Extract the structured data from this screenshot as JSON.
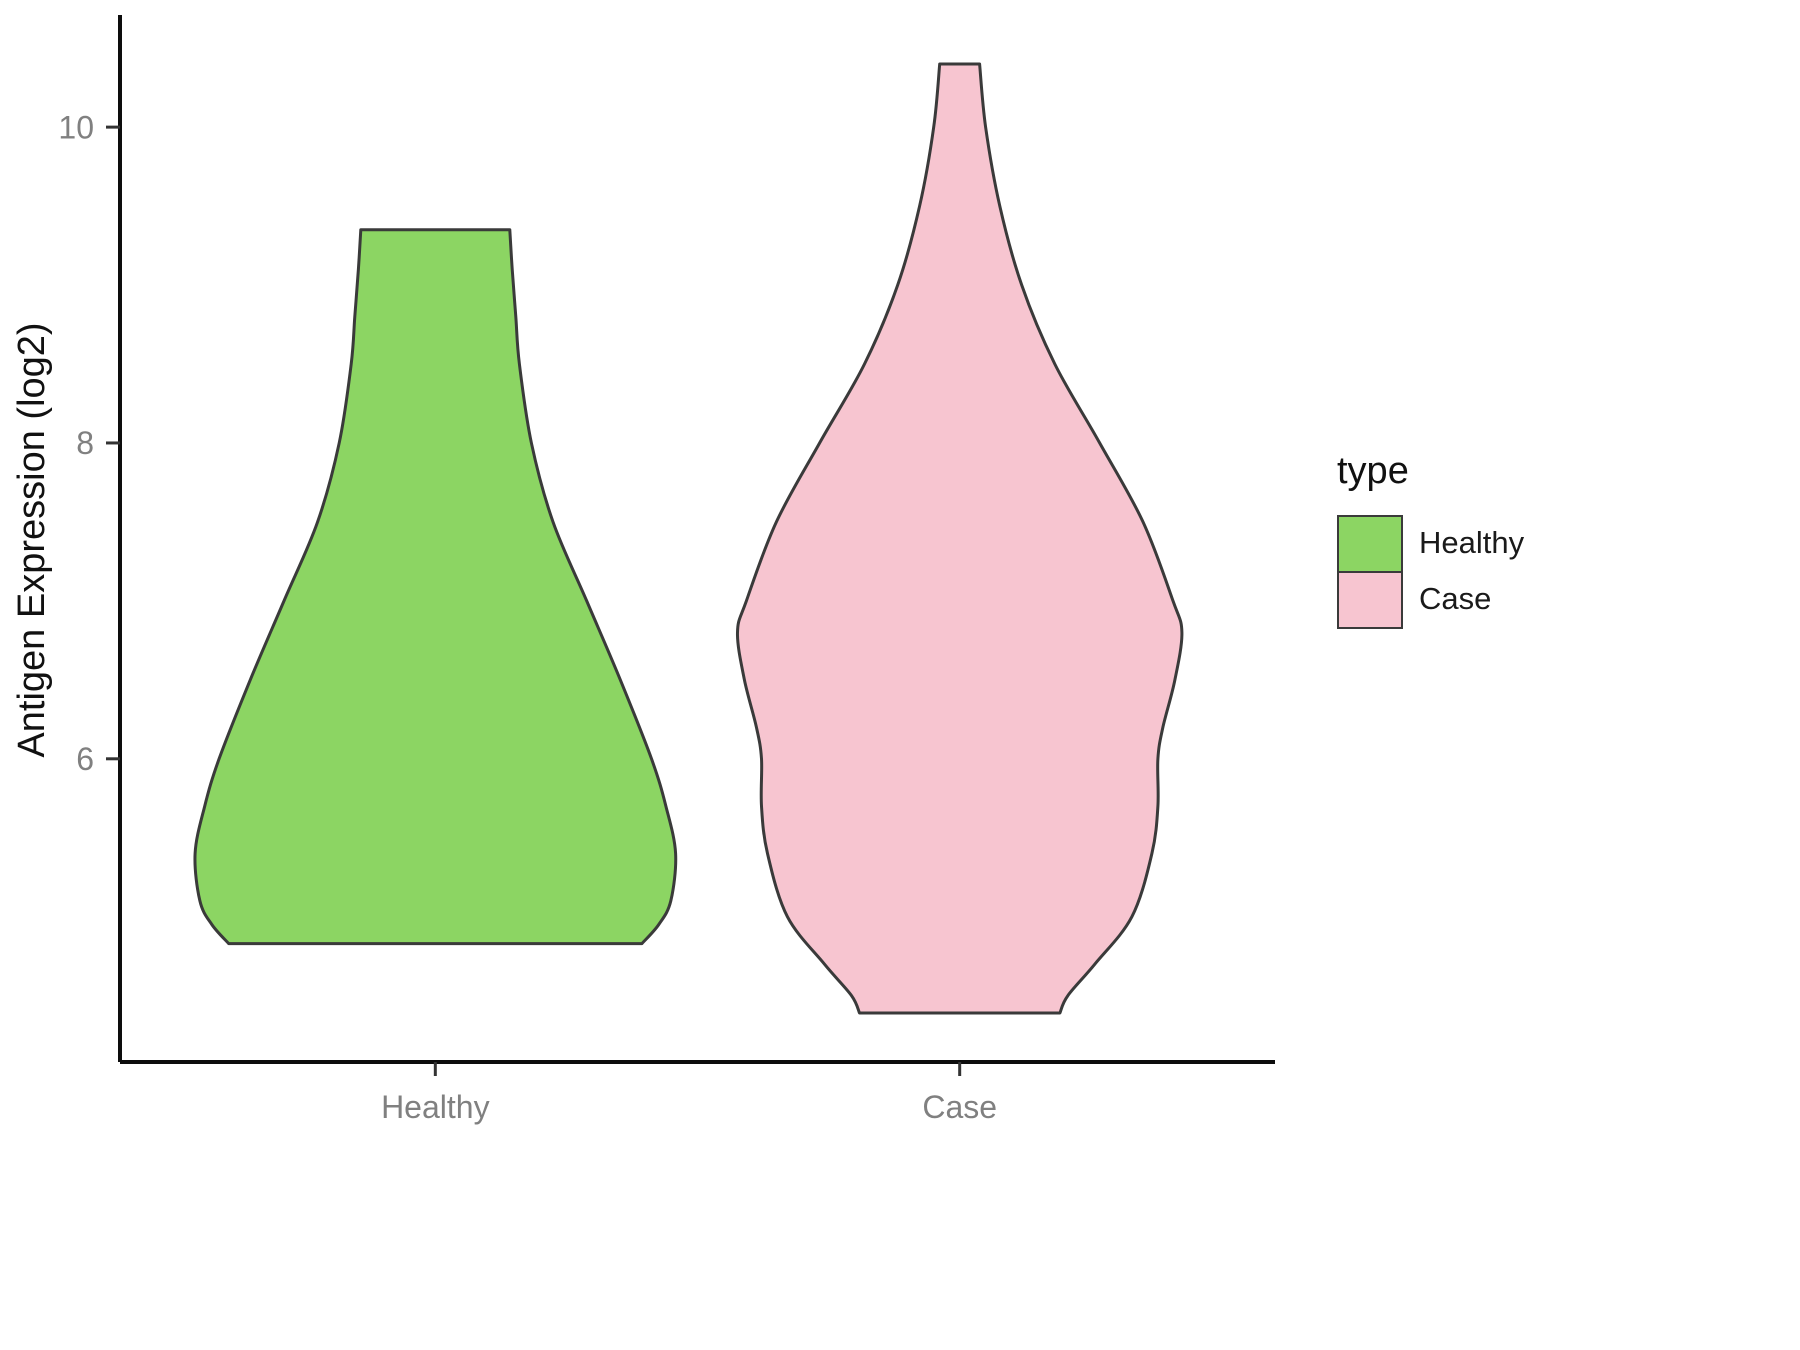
{
  "chart_data": {
    "type": "violin",
    "title": "",
    "xlabel": "",
    "ylabel": "Antigen Expression (log2)",
    "categories": [
      "Healthy",
      "Case"
    ],
    "yticks": [
      6,
      8,
      10
    ],
    "ylim": [
      4.08,
      10.71
    ],
    "grid": false,
    "legend_position": "right",
    "outline_color": "#3A3A3A",
    "axis_color": "#0d0d0d",
    "legend": {
      "title": "type",
      "entries": [
        {
          "label": "Healthy",
          "color": "#8CD563"
        },
        {
          "label": "Case",
          "color": "#F7C5D0"
        }
      ]
    },
    "violins": [
      {
        "category": "Healthy",
        "color": "#8CD563",
        "profile": [
          {
            "v": 9.35,
            "w": 0.31
          },
          {
            "v": 9.1,
            "w": 0.32
          },
          {
            "v": 8.8,
            "w": 0.335
          },
          {
            "v": 8.5,
            "w": 0.35
          },
          {
            "v": 8.0,
            "w": 0.4
          },
          {
            "v": 7.5,
            "w": 0.49
          },
          {
            "v": 7.0,
            "w": 0.63
          },
          {
            "v": 6.5,
            "w": 0.77
          },
          {
            "v": 6.0,
            "w": 0.9
          },
          {
            "v": 5.7,
            "w": 0.96
          },
          {
            "v": 5.4,
            "w": 1.0
          },
          {
            "v": 5.1,
            "w": 0.98
          },
          {
            "v": 4.95,
            "w": 0.93
          },
          {
            "v": 4.83,
            "w": 0.86
          }
        ]
      },
      {
        "category": "Case",
        "color": "#F7C5D0",
        "profile": [
          {
            "v": 10.4,
            "w": 0.083
          },
          {
            "v": 10.0,
            "w": 0.108
          },
          {
            "v": 9.5,
            "w": 0.167
          },
          {
            "v": 9.0,
            "w": 0.258
          },
          {
            "v": 8.5,
            "w": 0.396
          },
          {
            "v": 8.0,
            "w": 0.583
          },
          {
            "v": 7.5,
            "w": 0.763
          },
          {
            "v": 7.0,
            "w": 0.888
          },
          {
            "v": 6.8,
            "w": 0.925
          },
          {
            "v": 6.5,
            "w": 0.896
          },
          {
            "v": 6.2,
            "w": 0.846
          },
          {
            "v": 6.0,
            "w": 0.825
          },
          {
            "v": 5.7,
            "w": 0.825
          },
          {
            "v": 5.4,
            "w": 0.8
          },
          {
            "v": 5.0,
            "w": 0.717
          },
          {
            "v": 4.7,
            "w": 0.563
          },
          {
            "v": 4.5,
            "w": 0.45
          },
          {
            "v": 4.39,
            "w": 0.417
          }
        ]
      }
    ]
  }
}
